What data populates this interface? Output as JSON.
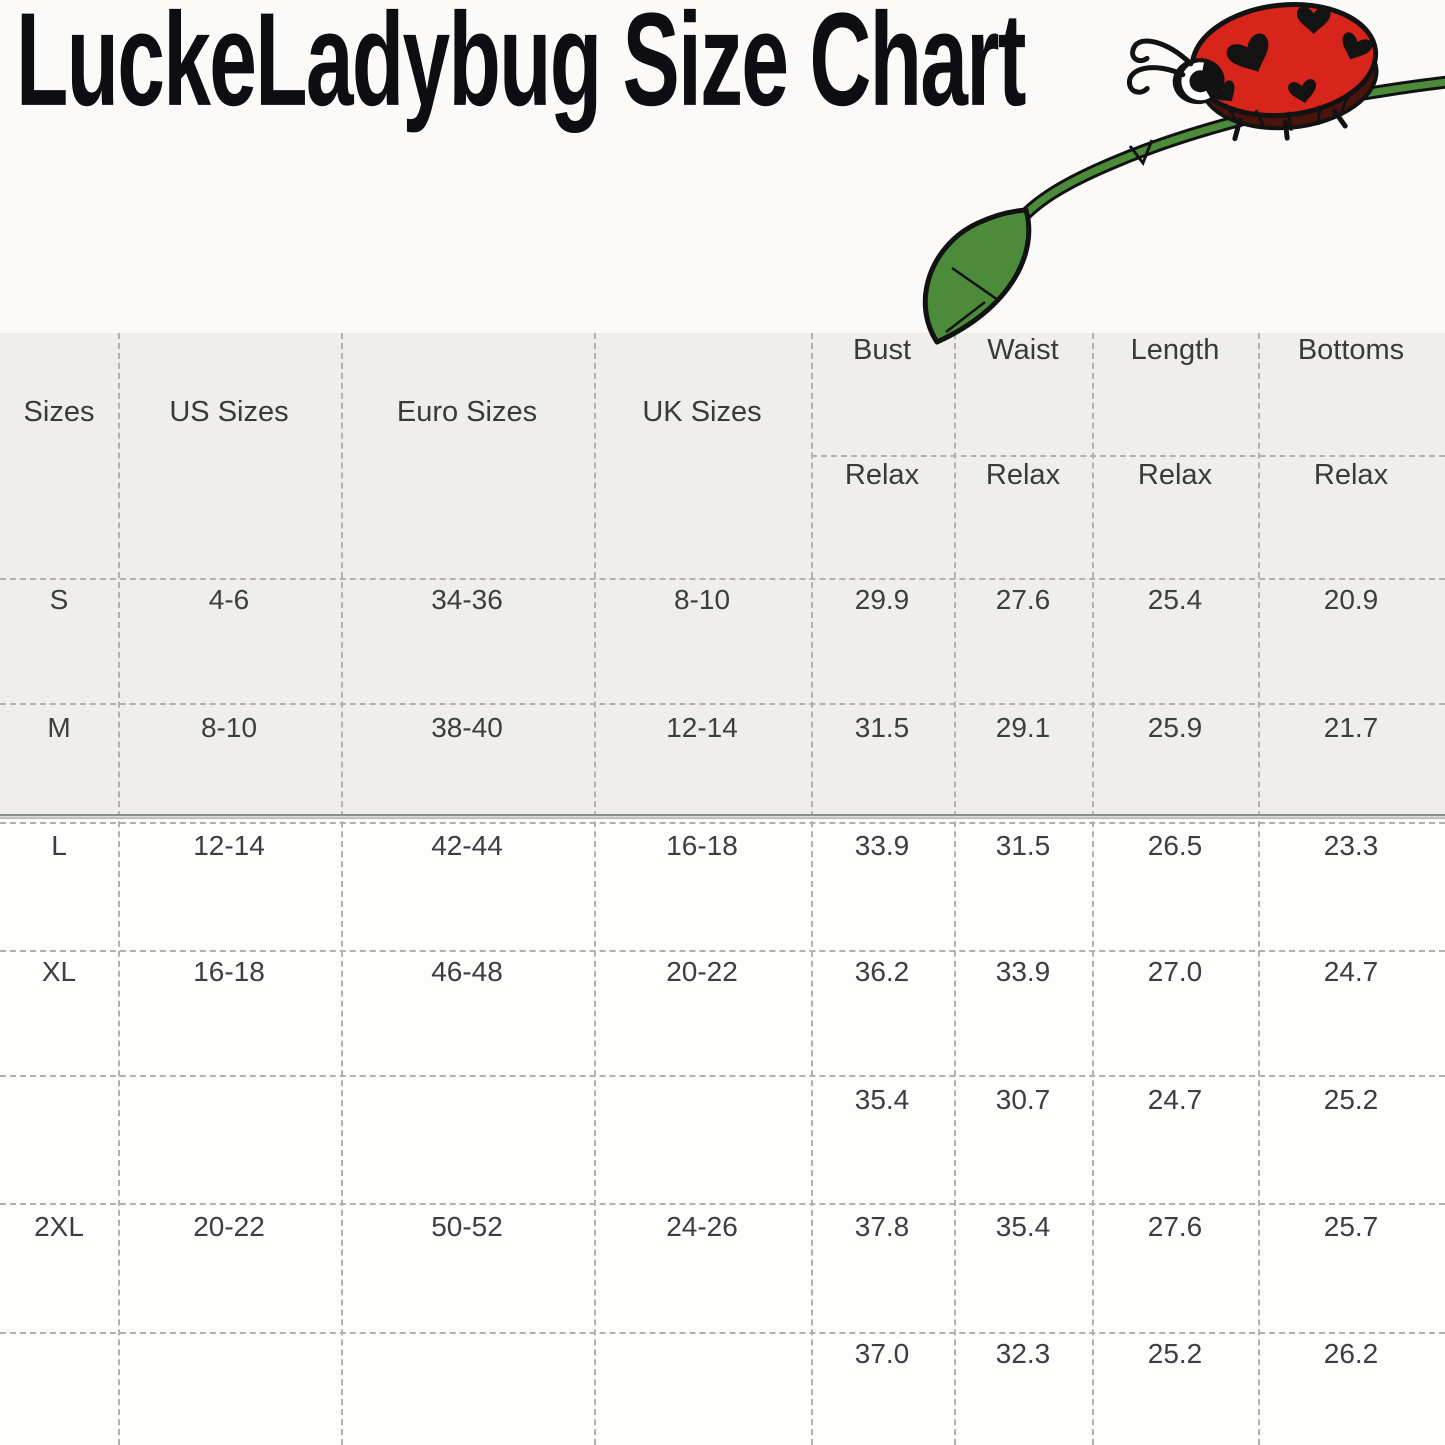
{
  "title": "LuckeLadybug Size Chart",
  "illustration": {
    "name": "ladybug-on-leaf",
    "ladybug_color": "#d8251b",
    "belly_color": "#4a130b",
    "leaf_color": "#4c8b3a",
    "spot_style": "hearts"
  },
  "colors": {
    "page_background": "#fbfaf8",
    "table_background_upper": "#f0eeea",
    "table_background_lower": "#fdfdfc",
    "grid_dash": "#b3b1ae",
    "text": "#3e3e3e",
    "title_text": "#0d0d12"
  },
  "chart_data": {
    "type": "table",
    "title": "LuckeLadybug Size Chart",
    "columns": [
      "Sizes",
      "US Sizes",
      "Euro Sizes",
      "UK Sizes",
      "Bust",
      "Waist",
      "Length",
      "Bottoms"
    ],
    "fit_row": [
      "Relax",
      "Relax",
      "Relax",
      "Relax"
    ],
    "rows": [
      [
        "S",
        "4-6",
        "34-36",
        "8-10",
        "29.9",
        "27.6",
        "25.4",
        "20.9"
      ],
      [
        "M",
        "8-10",
        "38-40",
        "12-14",
        "31.5",
        "29.1",
        "25.9",
        "21.7"
      ],
      [
        "L",
        "12-14",
        "42-44",
        "16-18",
        "33.9",
        "31.5",
        "26.5",
        "23.3"
      ],
      [
        "XL",
        "16-18",
        "46-48",
        "20-22",
        "36.2",
        "33.9",
        "27.0",
        "24.7"
      ],
      [
        "",
        "",
        "",
        "",
        "35.4",
        "30.7",
        "24.7",
        "25.2"
      ],
      [
        "2XL",
        "20-22",
        "50-52",
        "24-26",
        "37.8",
        "35.4",
        "27.6",
        "25.7"
      ],
      [
        "",
        "",
        "",
        "",
        "37.0",
        "32.3",
        "25.2",
        "26.2"
      ]
    ]
  }
}
